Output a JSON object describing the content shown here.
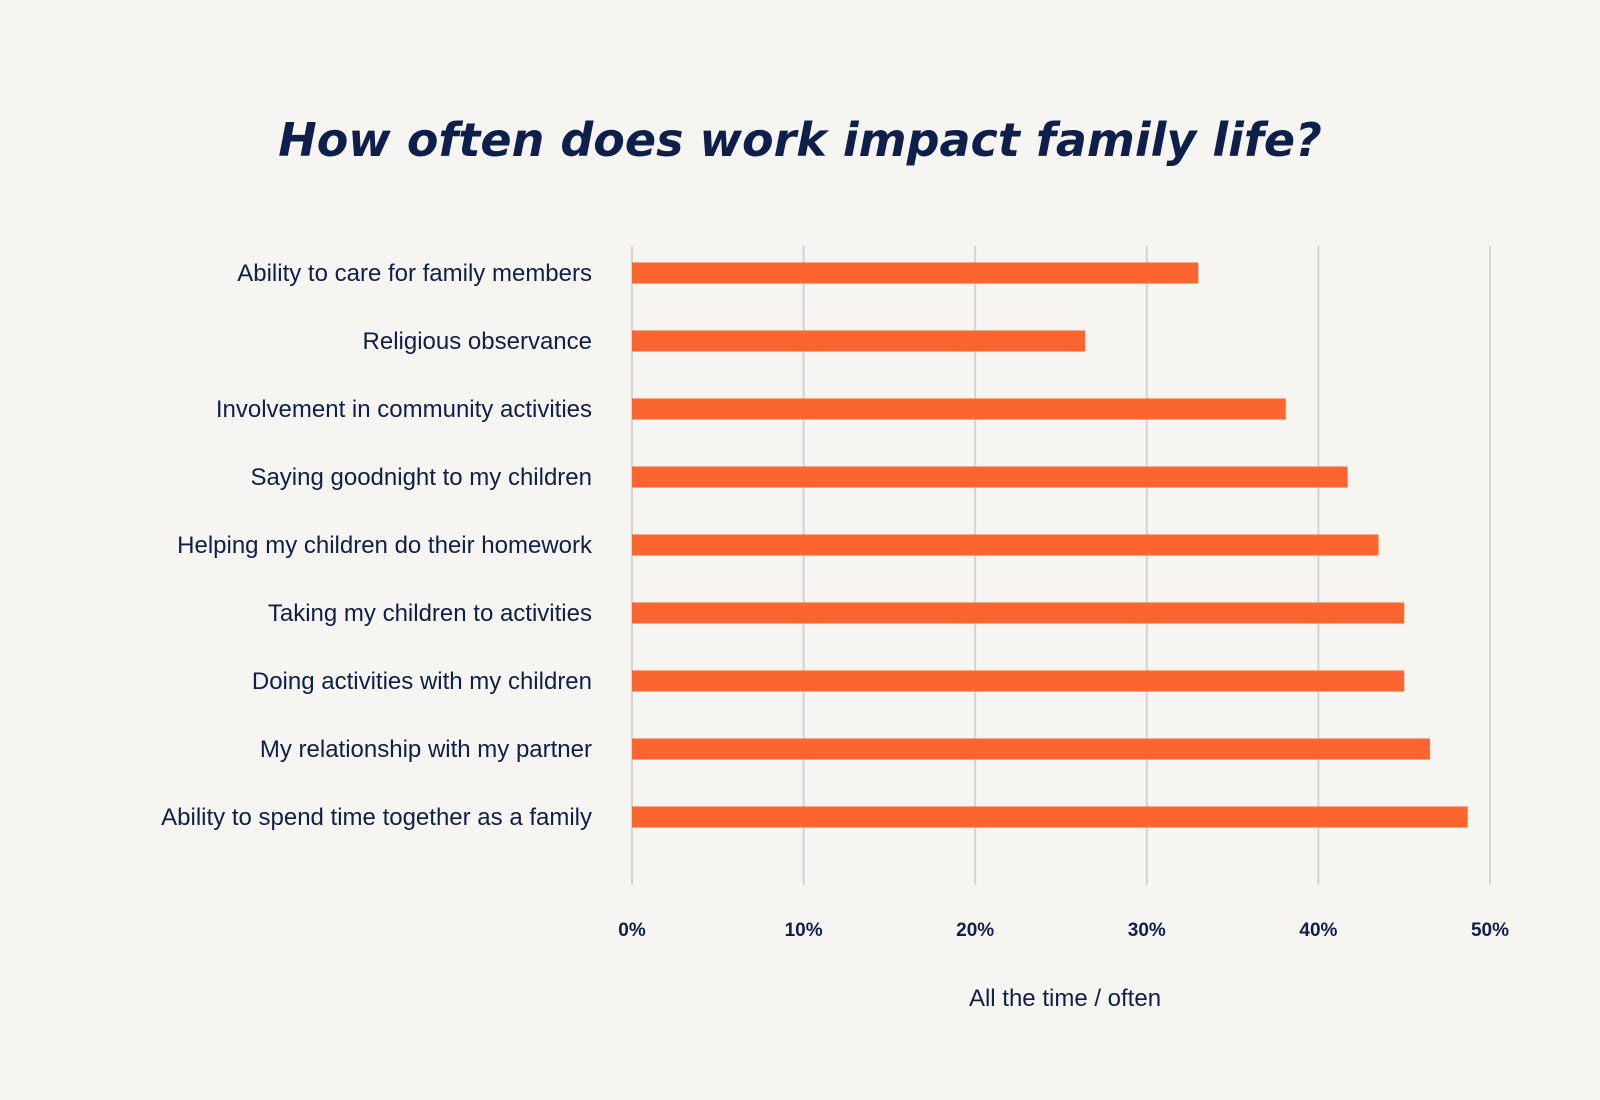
{
  "chart_data": {
    "type": "bar",
    "orientation": "horizontal",
    "title": "How often does work impact family life?",
    "xlabel": "All the time / often",
    "ylabel": "",
    "xlim": [
      0,
      50
    ],
    "x_ticks": [
      0,
      10,
      20,
      30,
      40,
      50
    ],
    "x_tick_labels": [
      "0%",
      "10%",
      "20%",
      "30%",
      "40%",
      "50%"
    ],
    "grid": "vertical",
    "legend": "none",
    "bar_color": "#fd6530",
    "text_color": "#0f1f4b",
    "background": "#f6f5f2",
    "categories": [
      "Ability to care for family members",
      "Religious observance",
      "Involvement in community activities",
      "Saying goodnight to my children",
      "Helping my children do their homework",
      "Taking my children to activities",
      "Doing activities with my children",
      "My relationship with my partner",
      "Ability to spend time together as a family"
    ],
    "values": [
      33,
      26.4,
      38.1,
      41.7,
      43.5,
      45,
      45,
      46.5,
      48.7
    ]
  }
}
